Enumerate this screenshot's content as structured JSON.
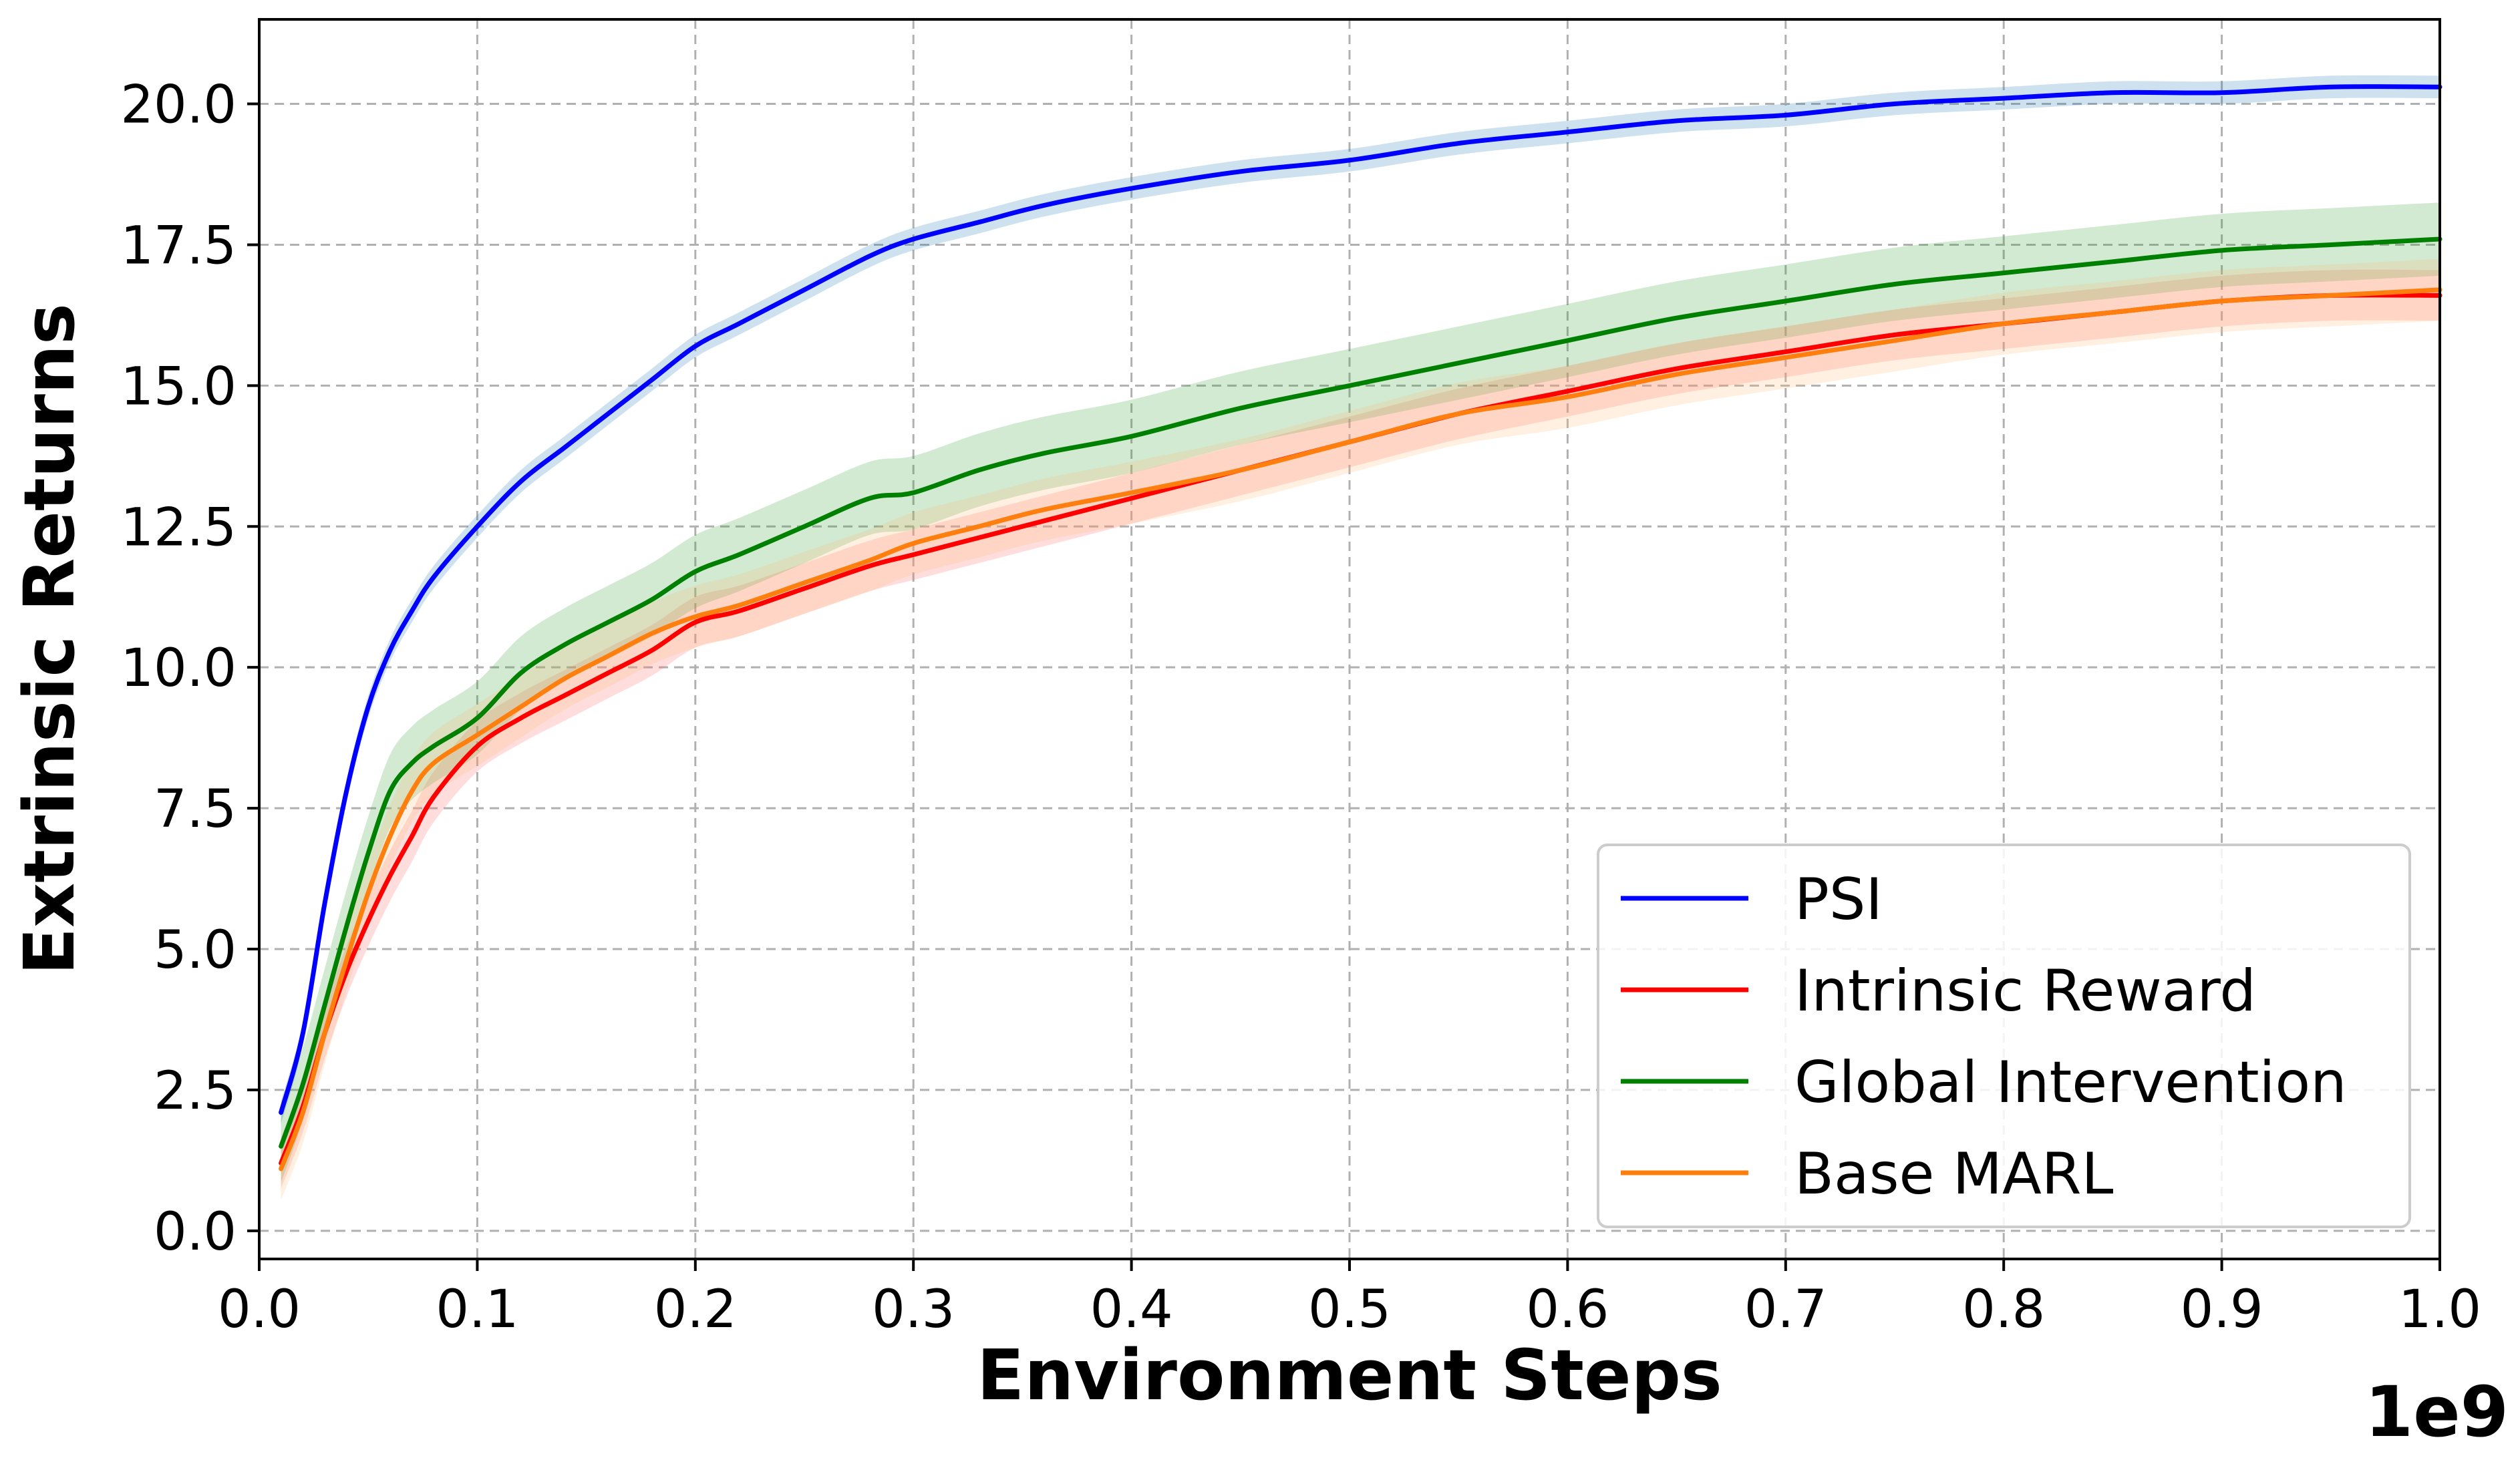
{
  "chart_data": {
    "type": "line",
    "title": "",
    "xlabel": "Environment Steps",
    "ylabel": "Extrinsic Returns",
    "x_offset_label": "1e9",
    "xlim": [
      0.0,
      1.0
    ],
    "ylim": [
      -0.5,
      21.5
    ],
    "xticks": [
      "0.0",
      "0.1",
      "0.2",
      "0.3",
      "0.4",
      "0.5",
      "0.6",
      "0.7",
      "0.8",
      "0.9",
      "1.0"
    ],
    "yticks": [
      "0.0",
      "2.5",
      "5.0",
      "7.5",
      "10.0",
      "12.5",
      "15.0",
      "17.5",
      "20.0"
    ],
    "grid": true,
    "legend_position": "lower-right",
    "x": [
      0.01,
      0.02,
      0.03,
      0.04,
      0.05,
      0.06,
      0.07,
      0.08,
      0.1,
      0.12,
      0.14,
      0.16,
      0.18,
      0.2,
      0.22,
      0.25,
      0.28,
      0.3,
      0.33,
      0.36,
      0.4,
      0.45,
      0.5,
      0.55,
      0.6,
      0.65,
      0.7,
      0.75,
      0.8,
      0.85,
      0.9,
      0.95,
      1.0
    ],
    "series": [
      {
        "name": "PSI",
        "color": "#0000ff",
        "band_color": "#1f77b4",
        "values": [
          2.1,
          3.5,
          5.8,
          7.8,
          9.3,
          10.3,
          11.0,
          11.6,
          12.5,
          13.3,
          13.9,
          14.5,
          15.1,
          15.7,
          16.1,
          16.7,
          17.3,
          17.6,
          17.9,
          18.2,
          18.5,
          18.8,
          19.0,
          19.3,
          19.5,
          19.7,
          19.8,
          20.0,
          20.1,
          20.2,
          20.2,
          20.3,
          20.3
        ],
        "band": 0.2
      },
      {
        "name": "Intrinsic Reward",
        "color": "#ff0000",
        "band_color": "#ff6666",
        "values": [
          1.2,
          2.2,
          3.5,
          4.6,
          5.5,
          6.3,
          7.0,
          7.7,
          8.6,
          9.1,
          9.5,
          9.9,
          10.3,
          10.8,
          11.0,
          11.4,
          11.8,
          12.0,
          12.3,
          12.6,
          13.0,
          13.5,
          14.0,
          14.5,
          14.9,
          15.3,
          15.6,
          15.9,
          16.1,
          16.3,
          16.5,
          16.6,
          16.6
        ],
        "band": 0.45
      },
      {
        "name": "Global Intervention",
        "color": "#008000",
        "band_color": "#2ca02c",
        "values": [
          1.5,
          2.6,
          4.0,
          5.4,
          6.7,
          7.8,
          8.3,
          8.6,
          9.1,
          9.9,
          10.4,
          10.8,
          11.2,
          11.7,
          12.0,
          12.5,
          13.0,
          13.1,
          13.5,
          13.8,
          14.1,
          14.6,
          15.0,
          15.4,
          15.8,
          16.2,
          16.5,
          16.8,
          17.0,
          17.2,
          17.4,
          17.5,
          17.6
        ],
        "band": 0.65
      },
      {
        "name": "Base MARL",
        "color": "#ff7f0e",
        "band_color": "#ffbb78",
        "values": [
          1.1,
          2.1,
          3.5,
          4.8,
          6.0,
          7.0,
          7.8,
          8.3,
          8.8,
          9.3,
          9.8,
          10.2,
          10.6,
          10.9,
          11.1,
          11.5,
          11.9,
          12.2,
          12.5,
          12.8,
          13.1,
          13.5,
          14.0,
          14.5,
          14.8,
          15.2,
          15.5,
          15.8,
          16.1,
          16.3,
          16.5,
          16.6,
          16.7
        ],
        "band": 0.55
      }
    ]
  }
}
